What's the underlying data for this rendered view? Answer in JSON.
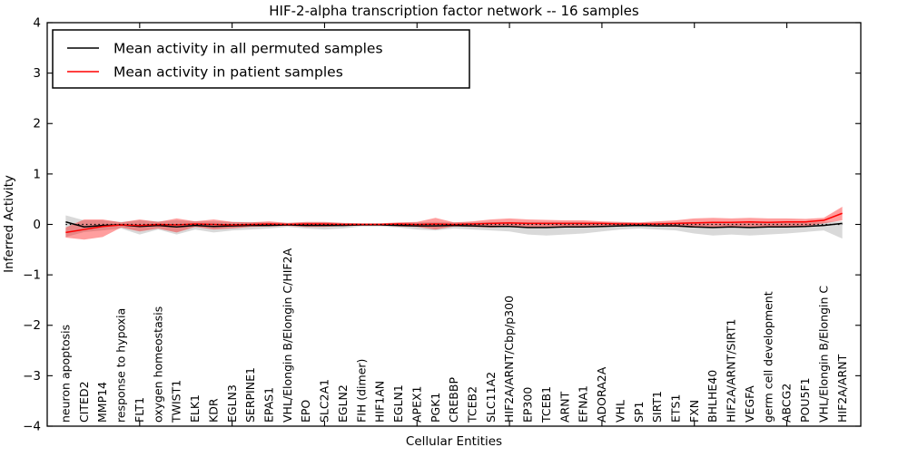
{
  "figure": {
    "title": "HIF-2-alpha transcription factor network -- 16 samples",
    "xlabel": "Cellular Entities",
    "ylabel": "Inferred Activity"
  },
  "legend": {
    "position": "upper left",
    "entries": [
      {
        "label": "Mean activity in all permuted samples",
        "color": "#000000"
      },
      {
        "label": "Mean activity in patient samples",
        "color": "#ff0000"
      }
    ]
  },
  "chart_data": {
    "type": "line",
    "title": "HIF-2-alpha transcription factor network -- 16 samples",
    "xlabel": "Cellular Entities",
    "ylabel": "Inferred Activity",
    "xlim": [
      0,
      44
    ],
    "ylim": [
      -4,
      4
    ],
    "yticks": [
      -4,
      -3,
      -2,
      -1,
      0,
      1,
      2,
      3,
      4
    ],
    "xticks": [
      5,
      10,
      15,
      20,
      25,
      30,
      35,
      40
    ],
    "grid": false,
    "legend_position": "upper left",
    "reference_line": 0,
    "colors": {
      "permuted_line": "#000000",
      "patient_line": "#ff0000",
      "permuted_band": "rgba(128,128,128,0.30)",
      "patient_band": "rgba(255,0,0,0.38)",
      "reference_dotted": "#000000"
    },
    "categories": [
      "neuron apoptosis",
      "CITED2",
      "MMP14",
      "response to hypoxia",
      "FLT1",
      "oxygen homeostasis",
      "TWIST1",
      "ELK1",
      "KDR",
      "EGLN3",
      "SERPINE1",
      "EPAS1",
      "VHL/Elongin B/Elongin C/HIF2A",
      "EPO",
      "SLC2A1",
      "EGLN2",
      "FIH (dimer)",
      "HIF1AN",
      "EGLN1",
      "APEX1",
      "PGK1",
      "CREBBP",
      "TCEB2",
      "SLC11A2",
      "HIF2A/ARNT/Cbp/p300",
      "EP300",
      "TCEB1",
      "ARNT",
      "EFNA1",
      "ADORA2A",
      "VHL",
      "SP1",
      "SIRT1",
      "ETS1",
      "FXN",
      "BHLHE40",
      "HIF2A/ARNT/SIRT1",
      "VEGFA",
      "germ cell development",
      "ABCG2",
      "POU5F1",
      "VHL/Elongin B/Elongin C",
      "HIF2A/ARNT"
    ],
    "series": [
      {
        "name": "Mean activity in all permuted samples",
        "render": "line",
        "color": "#000000",
        "values": [
          0.05,
          -0.05,
          -0.02,
          -0.01,
          -0.04,
          -0.02,
          -0.05,
          -0.02,
          -0.04,
          -0.03,
          -0.02,
          -0.02,
          -0.01,
          -0.02,
          -0.02,
          -0.02,
          -0.01,
          -0.01,
          -0.02,
          -0.03,
          -0.03,
          -0.02,
          -0.03,
          -0.04,
          -0.04,
          -0.06,
          -0.06,
          -0.05,
          -0.05,
          -0.04,
          -0.03,
          -0.02,
          -0.03,
          -0.03,
          -0.05,
          -0.06,
          -0.05,
          -0.06,
          -0.05,
          -0.05,
          -0.04,
          -0.02,
          0.02
        ]
      },
      {
        "name": "Mean activity in patient samples",
        "render": "line",
        "color": "#ff0000",
        "values": [
          -0.16,
          -0.1,
          -0.04,
          -0.01,
          -0.02,
          0.0,
          -0.01,
          0.01,
          0.0,
          -0.01,
          0.0,
          0.01,
          0.0,
          0.01,
          0.01,
          0.0,
          0.0,
          0.0,
          0.01,
          0.0,
          0.01,
          0.0,
          0.01,
          0.02,
          0.03,
          0.02,
          0.02,
          0.02,
          0.02,
          0.02,
          0.01,
          0.01,
          0.01,
          0.02,
          0.03,
          0.04,
          0.04,
          0.05,
          0.04,
          0.05,
          0.05,
          0.08,
          0.22
        ]
      },
      {
        "name": "Permuted samples spread band",
        "render": "band",
        "color": "rgba(128,128,128,0.30)",
        "upper": [
          0.18,
          0.08,
          0.08,
          0.05,
          0.08,
          0.06,
          0.08,
          0.06,
          0.06,
          0.05,
          0.05,
          0.04,
          0.03,
          0.04,
          0.04,
          0.03,
          0.02,
          0.02,
          0.03,
          0.04,
          0.05,
          0.04,
          0.04,
          0.05,
          0.05,
          0.05,
          0.05,
          0.05,
          0.05,
          0.04,
          0.04,
          0.03,
          0.04,
          0.04,
          0.05,
          0.05,
          0.05,
          0.05,
          0.05,
          0.05,
          0.04,
          0.05,
          0.06
        ],
        "lower": [
          -0.25,
          -0.15,
          -0.12,
          -0.08,
          -0.2,
          -0.1,
          -0.2,
          -0.1,
          -0.16,
          -0.12,
          -0.1,
          -0.08,
          -0.05,
          -0.08,
          -0.1,
          -0.08,
          -0.04,
          -0.04,
          -0.06,
          -0.1,
          -0.12,
          -0.08,
          -0.1,
          -0.12,
          -0.14,
          -0.2,
          -0.22,
          -0.2,
          -0.18,
          -0.14,
          -0.1,
          -0.08,
          -0.1,
          -0.12,
          -0.18,
          -0.22,
          -0.2,
          -0.22,
          -0.2,
          -0.18,
          -0.15,
          -0.12,
          -0.28
        ]
      },
      {
        "name": "Patient samples spread band",
        "render": "band",
        "color": "rgba(255,0,0,0.38)",
        "upper": [
          -0.06,
          0.1,
          0.1,
          0.04,
          0.1,
          0.05,
          0.12,
          0.06,
          0.1,
          0.05,
          0.04,
          0.06,
          0.03,
          0.05,
          0.05,
          0.03,
          0.02,
          0.02,
          0.04,
          0.05,
          0.13,
          0.04,
          0.06,
          0.1,
          0.12,
          0.1,
          0.09,
          0.08,
          0.08,
          0.06,
          0.05,
          0.04,
          0.06,
          0.08,
          0.12,
          0.13,
          0.12,
          0.13,
          0.12,
          0.12,
          0.11,
          0.13,
          0.35
        ],
        "lower": [
          -0.26,
          -0.3,
          -0.25,
          -0.06,
          -0.14,
          -0.08,
          -0.16,
          -0.05,
          -0.1,
          -0.08,
          -0.05,
          -0.04,
          -0.03,
          -0.05,
          -0.05,
          -0.03,
          -0.02,
          -0.02,
          -0.04,
          -0.05,
          -0.1,
          -0.04,
          -0.05,
          -0.06,
          -0.05,
          -0.06,
          -0.06,
          -0.05,
          -0.06,
          -0.05,
          -0.04,
          -0.03,
          -0.04,
          -0.05,
          -0.06,
          -0.06,
          -0.05,
          -0.06,
          -0.05,
          -0.05,
          -0.04,
          0.02,
          0.08
        ]
      }
    ]
  }
}
